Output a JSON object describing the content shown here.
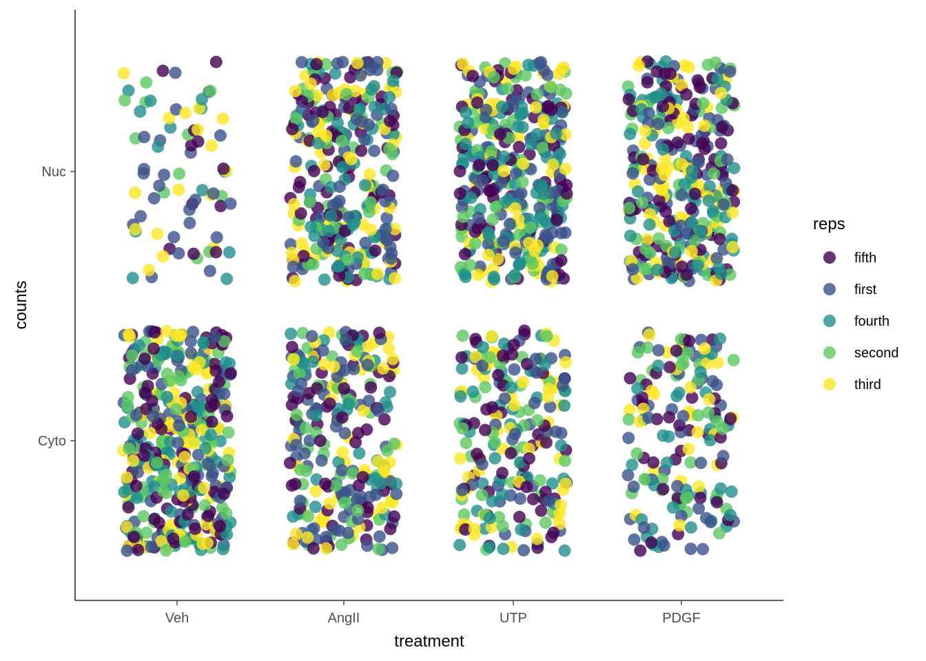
{
  "chart_data": {
    "type": "scatter",
    "jitter": true,
    "xlabel": "treatment",
    "ylabel": "counts",
    "categories": [
      "Veh",
      "AngII",
      "UTP",
      "PDGF"
    ],
    "y_categories": [
      "Cyto",
      "Nuc"
    ],
    "legend": {
      "title": "reps",
      "placement": "right",
      "entries": [
        {
          "label": "fifth",
          "color": "#440154"
        },
        {
          "label": "first",
          "color": "#3b528b"
        },
        {
          "label": "fourth",
          "color": "#21908c"
        },
        {
          "label": "second",
          "color": "#5dc863"
        },
        {
          "label": "third",
          "color": "#fde725"
        }
      ]
    },
    "point_counts": [
      {
        "x": "Veh",
        "y": "Nuc",
        "n": 75
      },
      {
        "x": "Veh",
        "y": "Cyto",
        "n": 420
      },
      {
        "x": "AngII",
        "y": "Nuc",
        "n": 320
      },
      {
        "x": "AngII",
        "y": "Cyto",
        "n": 270
      },
      {
        "x": "UTP",
        "y": "Nuc",
        "n": 380
      },
      {
        "x": "UTP",
        "y": "Cyto",
        "n": 230
      },
      {
        "x": "PDGF",
        "y": "Nuc",
        "n": 330
      },
      {
        "x": "PDGF",
        "y": "Cyto",
        "n": 170
      }
    ],
    "grid": false
  }
}
